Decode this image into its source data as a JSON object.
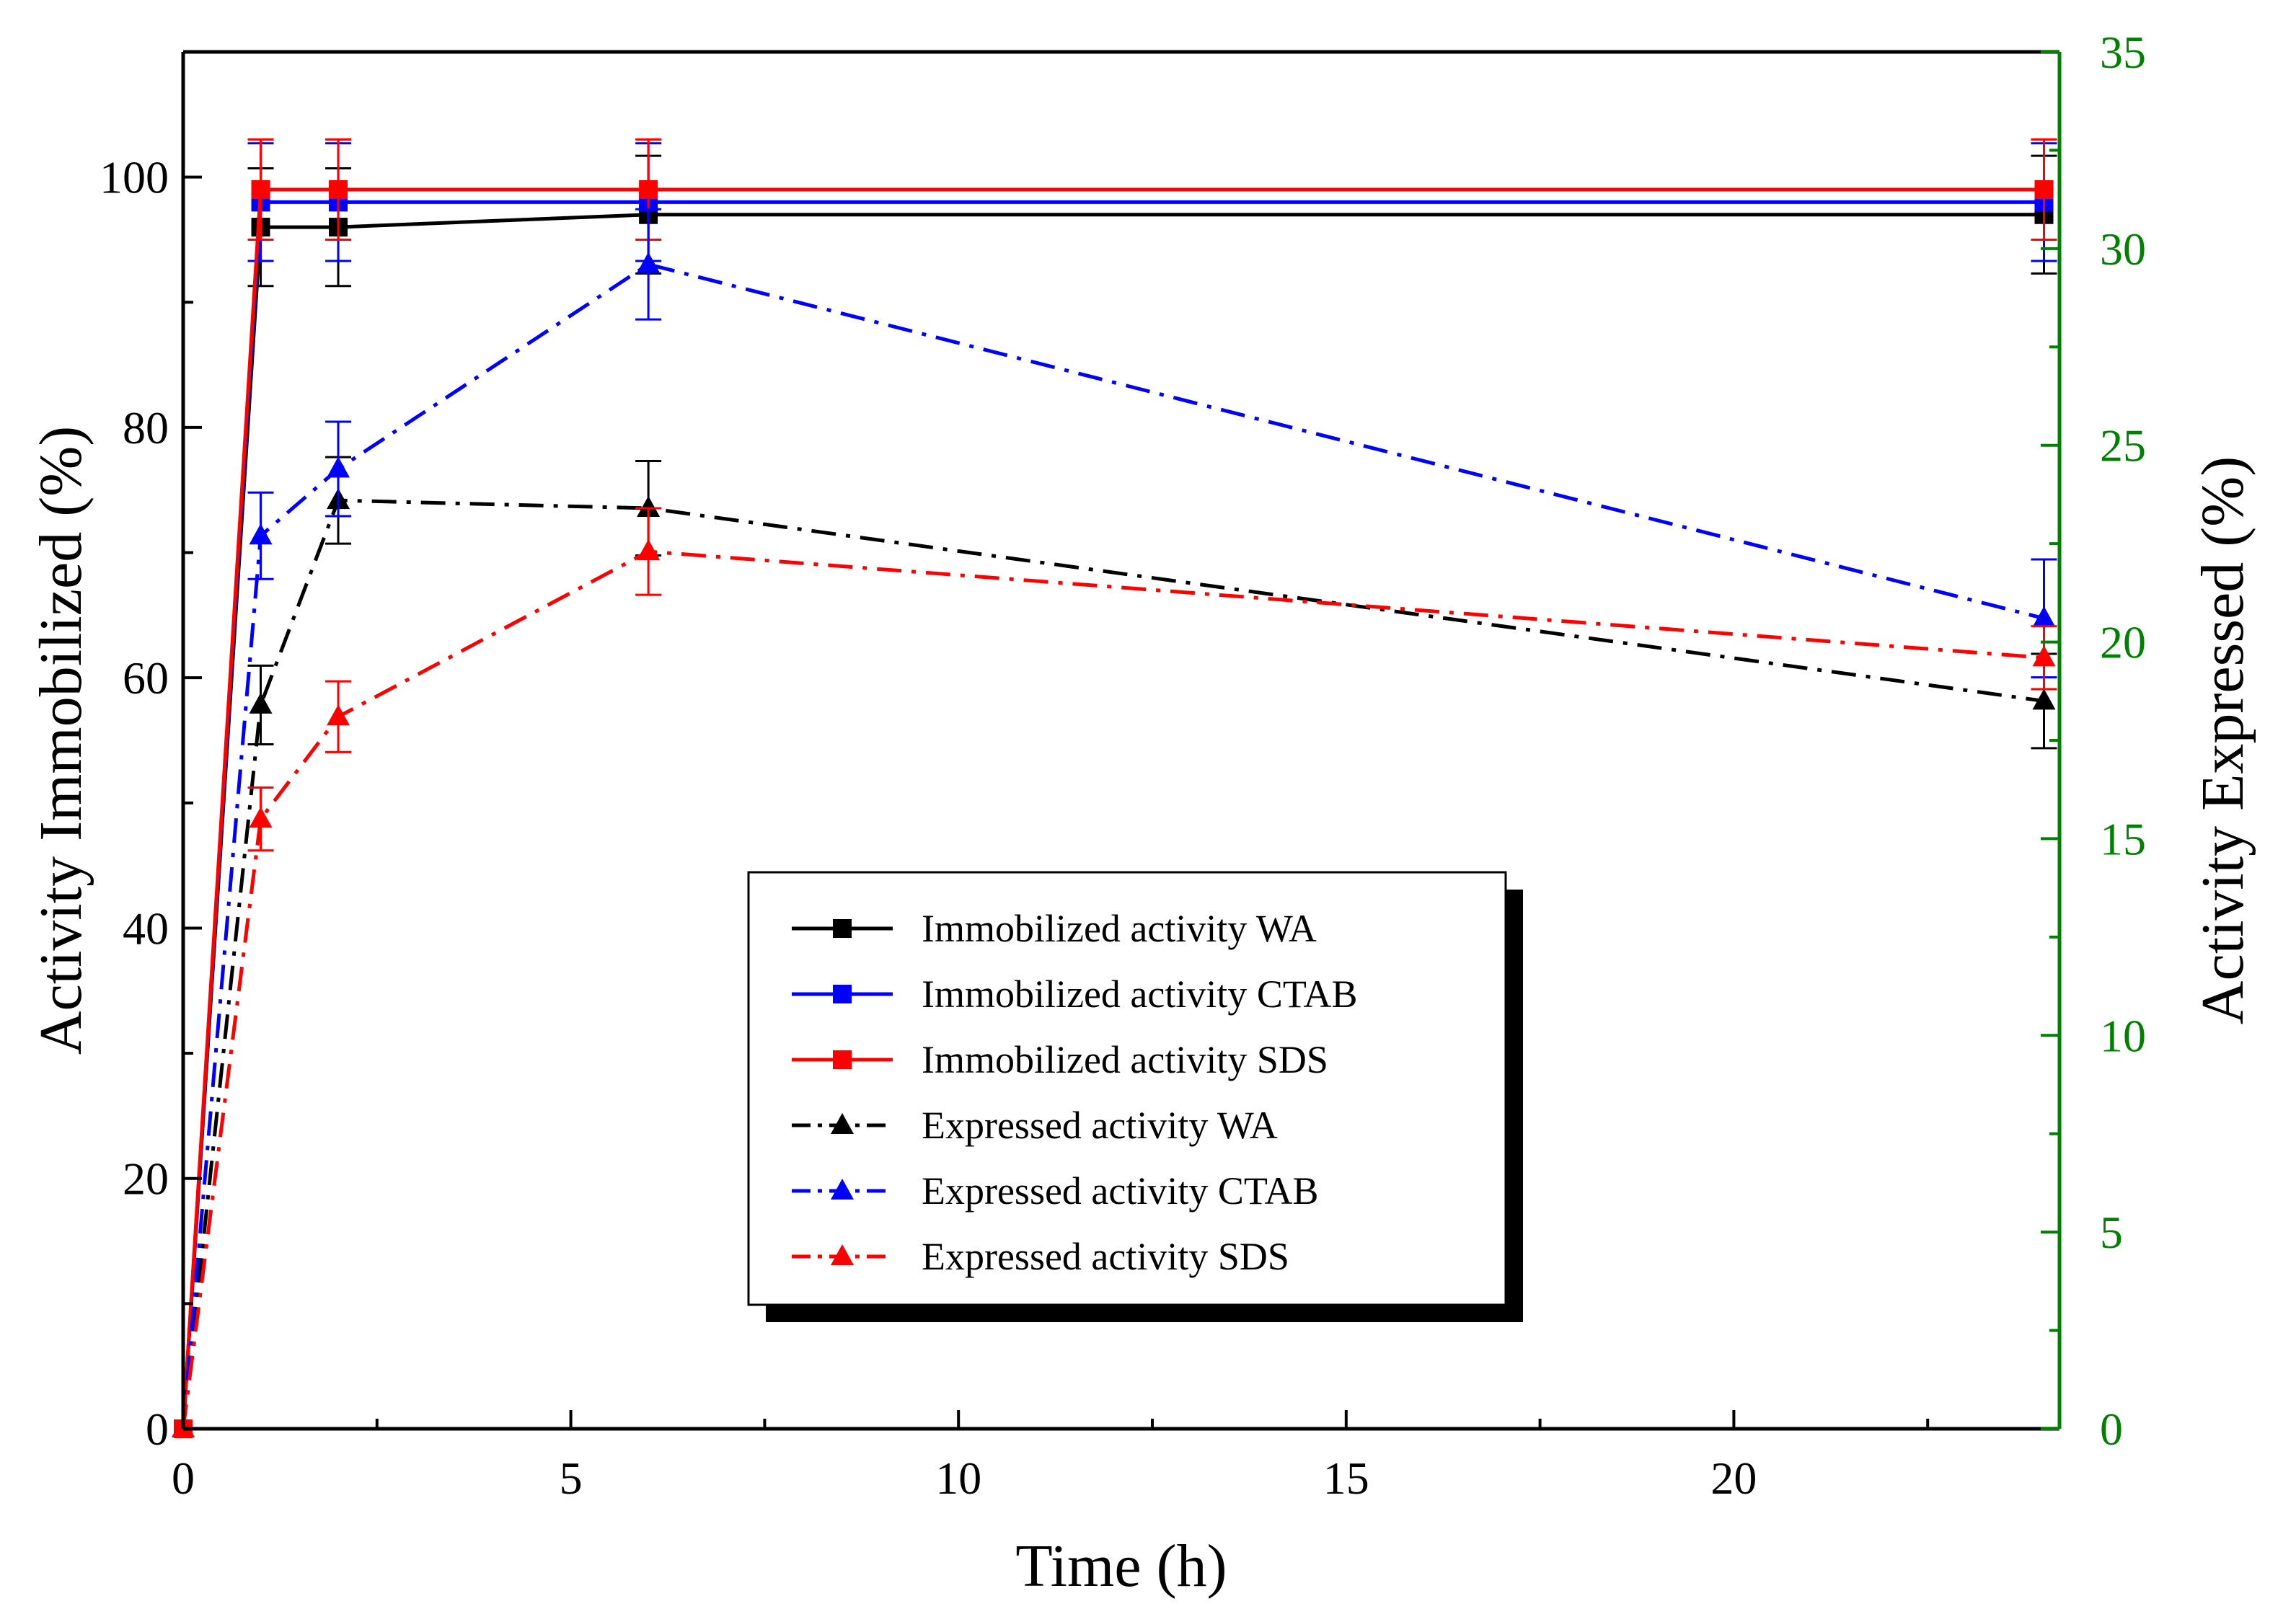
{
  "chart_data": {
    "type": "line",
    "xlabel": "Time (h)",
    "ylabel": "Activity Immobilized (%)",
    "y2label": "Activity Expressed (%)",
    "xlim": [
      0,
      24.2
    ],
    "ylim": [
      0,
      110
    ],
    "y2lim": [
      0,
      35
    ],
    "xticks": [
      "0",
      "5",
      "10",
      "15",
      "20"
    ],
    "xtick_values": [
      0,
      5,
      10,
      15,
      20
    ],
    "yticks": [
      "0",
      "20",
      "40",
      "60",
      "80",
      "100"
    ],
    "ytick_values": [
      0,
      20,
      40,
      60,
      80,
      100
    ],
    "y2ticks": [
      "0",
      "5",
      "10",
      "15",
      "20",
      "25",
      "30",
      "35"
    ],
    "y2tick_values": [
      0,
      5,
      10,
      15,
      20,
      25,
      30,
      35
    ],
    "colors": {
      "black": "#000000",
      "blue": "#0000ff",
      "red": "#ff0000",
      "right_axis": "#008000"
    },
    "legend_position": "lower-center",
    "x": [
      0,
      1,
      2,
      6,
      24
    ],
    "series": [
      {
        "name": "Immobilized activity WA",
        "axis": "left",
        "color": "#000000",
        "marker": "square",
        "dash": "solid",
        "values": [
          0,
          96,
          96,
          97,
          97
        ],
        "errors": [
          0,
          4.7,
          4.7,
          4.7,
          4.7
        ]
      },
      {
        "name": "Immobilized activity CTAB",
        "axis": "left",
        "color": "#0000ff",
        "marker": "square",
        "dash": "solid",
        "values": [
          0,
          98,
          98,
          98,
          98
        ],
        "errors": [
          0,
          4.7,
          4.7,
          4.7,
          4.7
        ]
      },
      {
        "name": "Immobilized activity SDS",
        "axis": "left",
        "color": "#ff0000",
        "marker": "square",
        "dash": "solid",
        "values": [
          0,
          99,
          99,
          99,
          99
        ],
        "errors": [
          0,
          4,
          4,
          4,
          4
        ]
      },
      {
        "name": "Expressed activity WA",
        "axis": "right",
        "color": "#000000",
        "marker": "triangle",
        "dash": "dashdot",
        "values": [
          0,
          18.4,
          23.6,
          23.4,
          18.5
        ],
        "errors": [
          0,
          1,
          1.1,
          1.2,
          1.2
        ]
      },
      {
        "name": "Expressed activity CTAB",
        "axis": "right",
        "color": "#0000ff",
        "marker": "triangle",
        "dash": "dashdot",
        "values": [
          0,
          22.7,
          24.4,
          29.6,
          20.6
        ],
        "errors": [
          0,
          1.1,
          1.2,
          1.4,
          1.5
        ]
      },
      {
        "name": "Expressed activity SDS",
        "axis": "right",
        "color": "#ff0000",
        "marker": "triangle",
        "dash": "dashdot",
        "values": [
          0,
          15.5,
          18.1,
          22.3,
          19.6
        ],
        "errors": [
          0,
          0.8,
          0.9,
          1.1,
          0.8
        ]
      }
    ]
  }
}
